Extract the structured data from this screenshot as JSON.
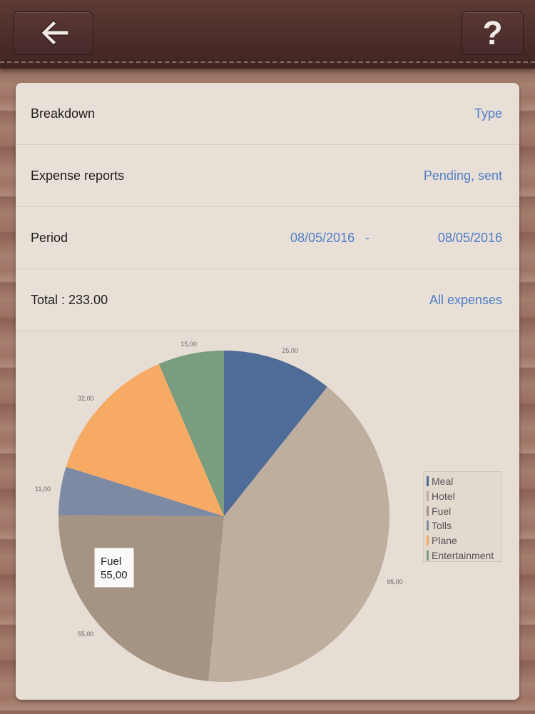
{
  "header": {
    "back_icon": "arrow-left-icon",
    "help_label": "?"
  },
  "settings": {
    "breakdown": {
      "label": "Breakdown",
      "value": "Type"
    },
    "expense_reports": {
      "label": "Expense reports",
      "value": "Pending, sent"
    },
    "period": {
      "label": "Period",
      "from": "08/05/2016",
      "separator": "-",
      "to": "08/05/2016"
    },
    "total": {
      "label": "Total : 233.00",
      "value": "All expenses"
    }
  },
  "chart_data": {
    "type": "pie",
    "categories": [
      "Meal",
      "Hotel",
      "Fuel",
      "Tolls",
      "Plane",
      "Entertainment"
    ],
    "values": [
      25,
      95,
      55,
      11,
      32,
      15
    ],
    "value_labels": [
      "25,00",
      "95,00",
      "55,00",
      "11,00",
      "32,00",
      "15,00"
    ],
    "colors": [
      "#4f6b97",
      "#bdae9d",
      "#a59383",
      "#7c8aa3",
      "#f7aa63",
      "#7a9d7f"
    ],
    "legend_position": "right"
  },
  "tooltip": {
    "name": "Fuel",
    "value": "55,00"
  }
}
